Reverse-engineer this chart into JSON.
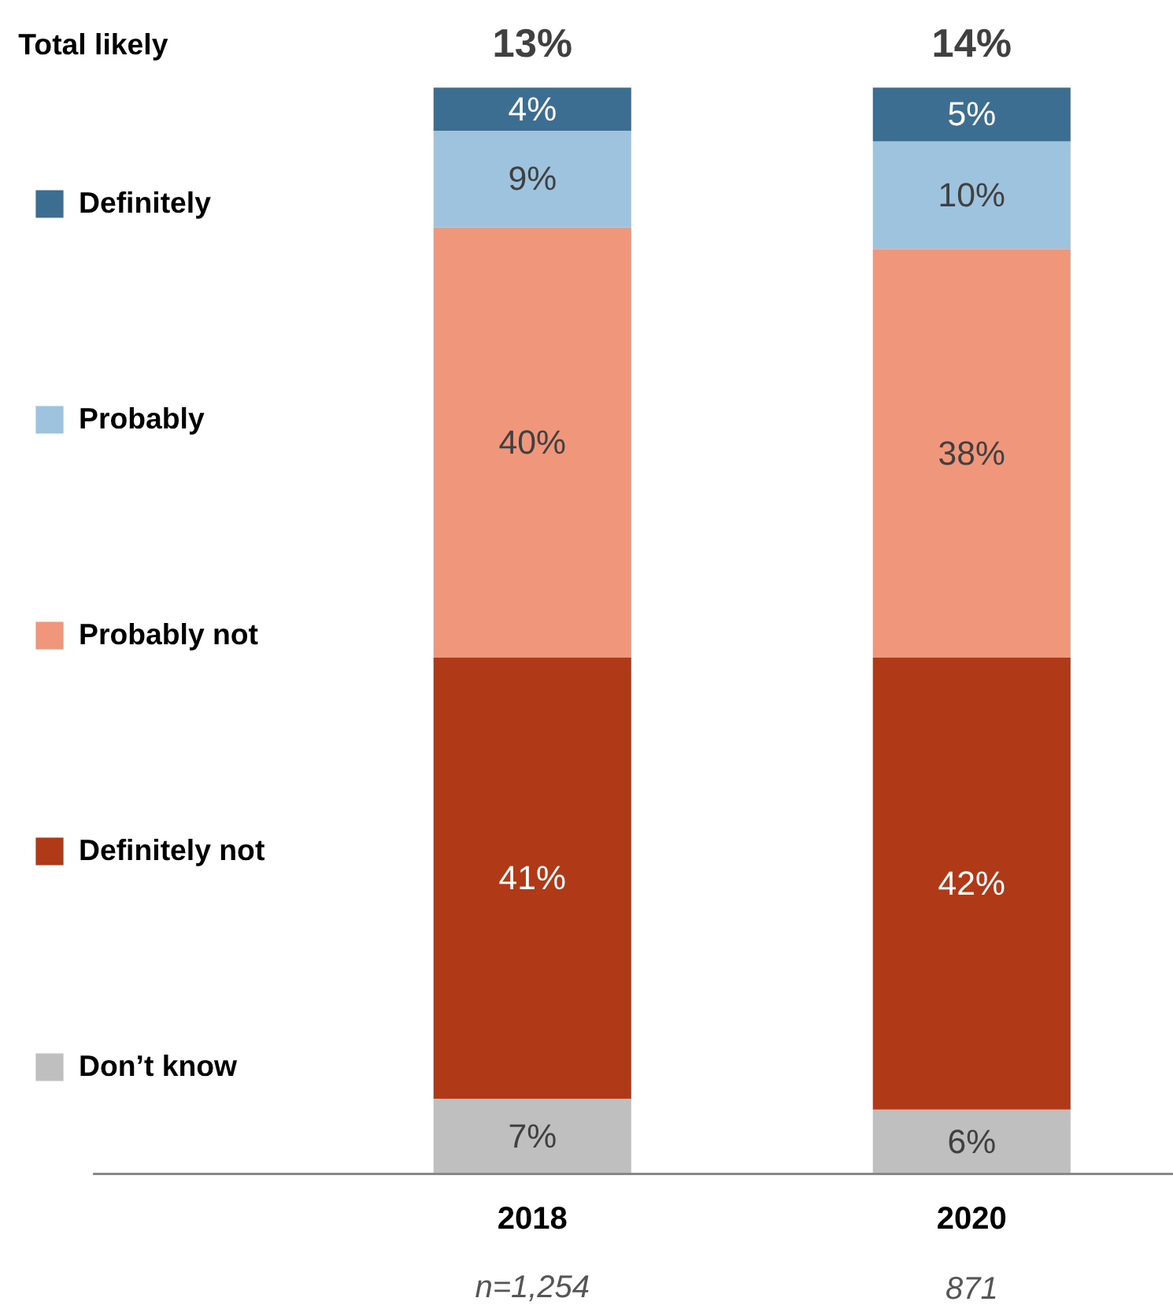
{
  "chart_data": {
    "type": "bar",
    "stacked": true,
    "categories": [
      "2018",
      "2020"
    ],
    "series": [
      {
        "name": "Don’t know",
        "color": "#bfbfbf",
        "values": [
          7,
          6
        ],
        "value_labels": [
          "7%",
          "6%"
        ]
      },
      {
        "name": "Definitely not",
        "color": "#b03a17",
        "values": [
          41,
          42
        ],
        "value_labels": [
          "41%",
          "42%"
        ]
      },
      {
        "name": "Probably not",
        "color": "#f0967b",
        "values": [
          40,
          38
        ],
        "value_labels": [
          "40%",
          "38%"
        ]
      },
      {
        "name": "Probably",
        "color": "#9dc3de",
        "values": [
          9,
          10
        ],
        "value_labels": [
          "9%",
          "10%"
        ]
      },
      {
        "name": "Definitely",
        "color": "#3b6e91",
        "values": [
          4,
          5
        ],
        "value_labels": [
          "4%",
          "5%"
        ]
      }
    ],
    "legend": "left",
    "annotations": [
      "Total likely",
      "13%",
      "14%",
      "n=1,254",
      "871"
    ]
  }
}
